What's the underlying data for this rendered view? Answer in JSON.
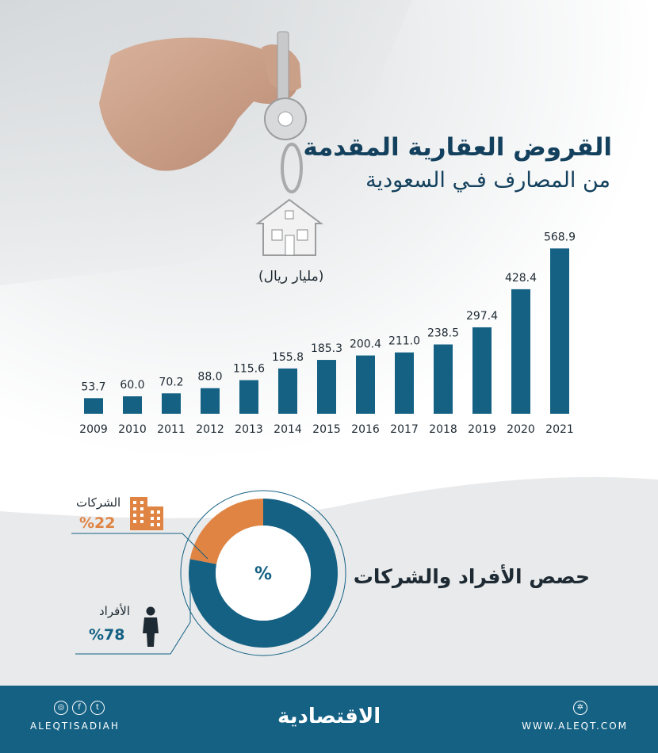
{
  "header": {
    "title_line1": "القروض العقارية المقدمة",
    "title_line2": "من المصارف فـي السعودية",
    "unit_label": "(مليار ريال)"
  },
  "colors": {
    "bar": "#146184",
    "title": "#13405d",
    "corporate": "#e08443",
    "individuals": "#146184",
    "footer": "#146184"
  },
  "chart_data": [
    {
      "type": "bar",
      "categories": [
        "2009",
        "2010",
        "2011",
        "2012",
        "2013",
        "2014",
        "2015",
        "2016",
        "2017",
        "2018",
        "2019",
        "2020",
        "2021"
      ],
      "values": [
        53.7,
        60.0,
        70.2,
        88.0,
        115.6,
        155.8,
        185.3,
        200.4,
        211.0,
        238.5,
        297.4,
        428.4,
        568.9
      ],
      "value_labels": [
        "53.7",
        "60.0",
        "70.2",
        "88.0",
        "115.6",
        "155.8",
        "185.3",
        "200.4",
        "211.0",
        "238.5",
        "297.4",
        "428.4",
        "568.9"
      ],
      "title": "القروض العقارية المقدمة من المصارف فـي السعودية",
      "ylabel": "(مليار ريال)",
      "ylim": [
        0,
        600
      ],
      "grid": false
    },
    {
      "type": "pie",
      "title": "حصص الأفراد والشركات",
      "center_label": "%",
      "slices": [
        {
          "label": "الشركات",
          "value": 22,
          "value_label": "%22",
          "color": "#e08443",
          "icon": "buildings-icon"
        },
        {
          "label": "الأفراد",
          "value": 78,
          "value_label": "%78",
          "color": "#146184",
          "icon": "person-icon"
        }
      ]
    }
  ],
  "footer": {
    "brand": "الاقتصادية",
    "social_handle": "ALEQTISADIAH",
    "website": "WWW.ALEQT.COM",
    "social_icons": [
      "instagram-icon",
      "facebook-icon",
      "twitter-icon"
    ],
    "website_icon": "globe-icon"
  }
}
